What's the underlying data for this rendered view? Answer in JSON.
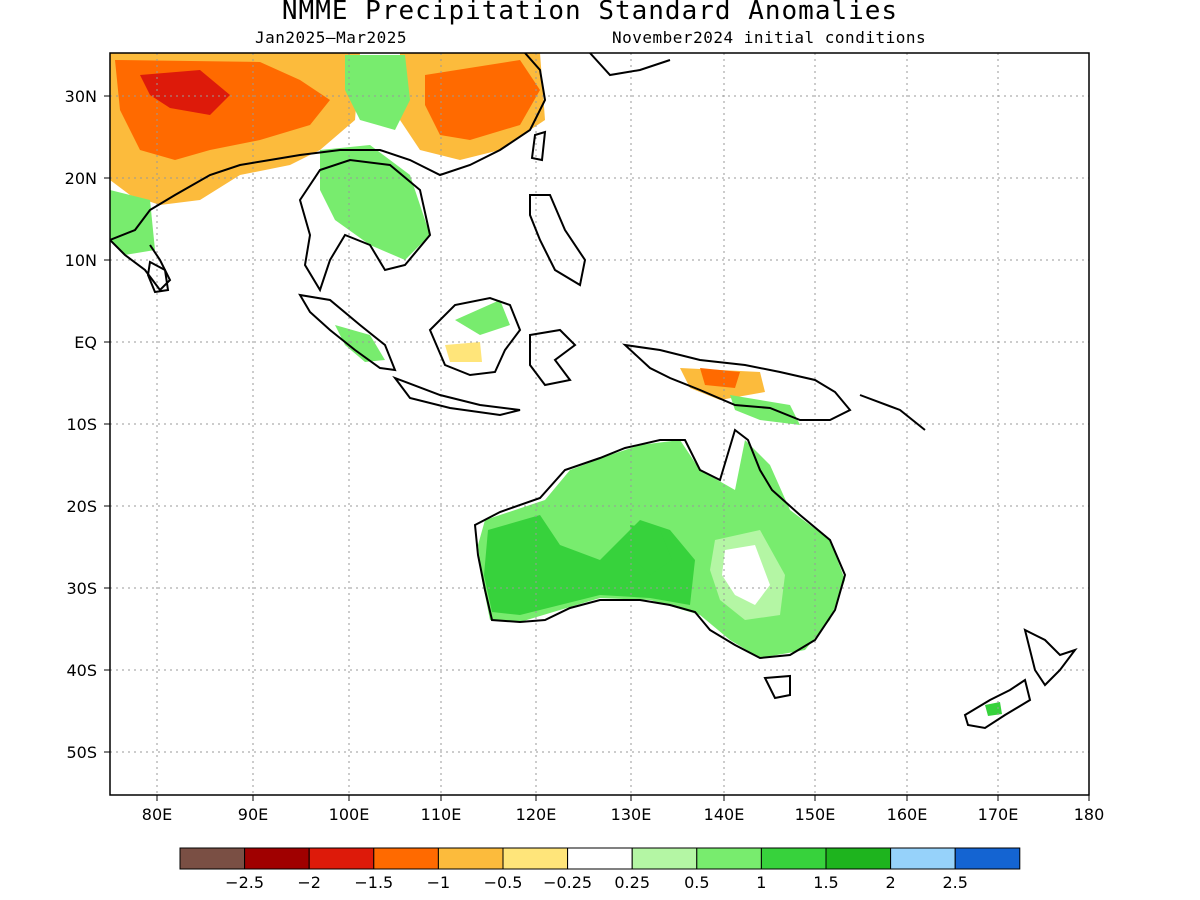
{
  "title": "NMME Precipitation Standard Anomalies",
  "subtitle_left": "Jan2025–Mar2025",
  "subtitle_right": "November2024 initial conditions",
  "lat_labels": [
    "30N",
    "20N",
    "10N",
    "EQ",
    "10S",
    "20S",
    "30S",
    "40S",
    "50S"
  ],
  "lon_labels": [
    "80E",
    "90E",
    "100E",
    "110E",
    "120E",
    "130E",
    "140E",
    "150E",
    "160E",
    "170E",
    "180"
  ],
  "legend": {
    "colors": [
      "#7a4f44",
      "#a00000",
      "#dd1a0a",
      "#ff6a00",
      "#fcbb3c",
      "#ffe57a",
      "#ffffff",
      "#b4f6a4",
      "#78ec6e",
      "#37d23c",
      "#1eb41e",
      "#96d2fa",
      "#1464d2"
    ],
    "labels": [
      "−2.5",
      "−2",
      "−1.5",
      "−1",
      "−0.5",
      "−0.25",
      "0.25",
      "0.5",
      "1",
      "1.5",
      "2",
      "2.5"
    ]
  },
  "regions": [
    {
      "name": "australia-wet",
      "category": "0.5 to 1",
      "color": "#78ec6e"
    },
    {
      "name": "australia-wetter",
      "category": "1 to 1.5",
      "color": "#37d23c"
    },
    {
      "name": "south-asia-dry",
      "category": "-1 to -0.5",
      "color": "#fcbb3c"
    },
    {
      "name": "china-dry",
      "category": "-1.5 to -1",
      "color": "#ff6a00"
    },
    {
      "name": "tibet-very-dry",
      "category": "-2 to -1.5",
      "color": "#dd1a0a"
    },
    {
      "name": "indochina-wet",
      "category": "0.5 to 1",
      "color": "#78ec6e"
    }
  ]
}
